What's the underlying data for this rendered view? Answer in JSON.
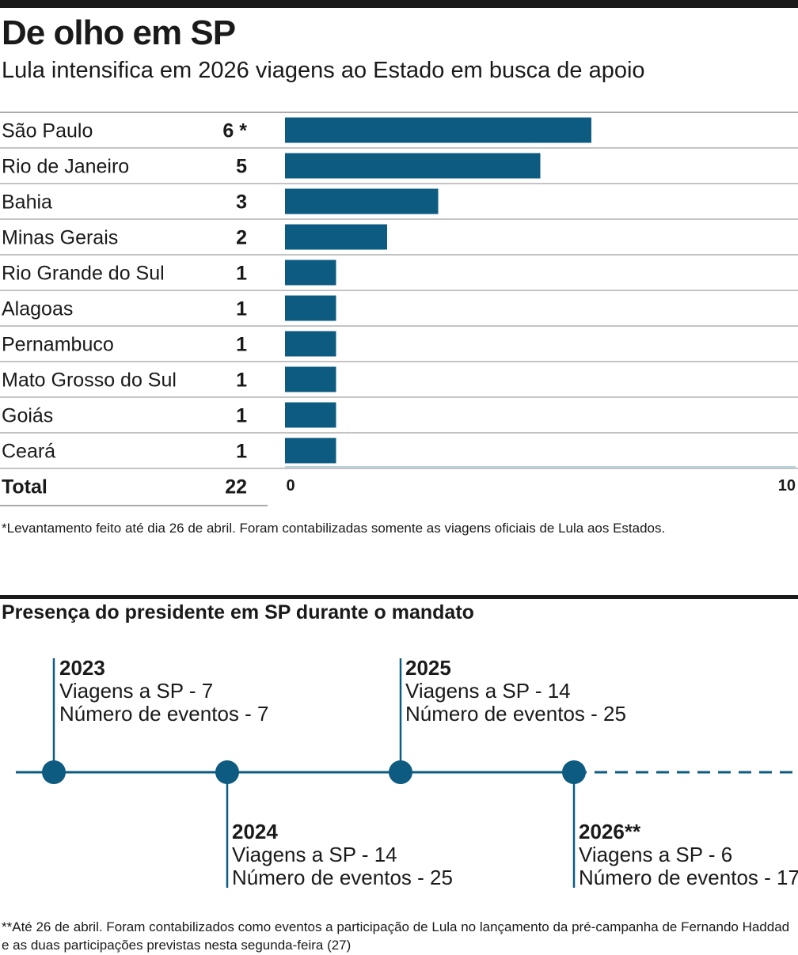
{
  "title": "De olho em SP",
  "subtitle": "Lula intensifica em 2026 viagens ao Estado em busca de apoio",
  "chart_data": {
    "type": "bar",
    "orientation": "horizontal",
    "categories": [
      "São Paulo",
      "Rio de Janeiro",
      "Bahia",
      "Minas Gerais",
      "Rio Grande do Sul",
      "Alagoas",
      "Pernambuco",
      "Mato Grosso do Sul",
      "Goiás",
      "Ceará"
    ],
    "values": [
      6,
      5,
      3,
      2,
      1,
      1,
      1,
      1,
      1,
      1
    ],
    "value_labels": [
      "6 *",
      "5",
      "3",
      "2",
      "1",
      "1",
      "1",
      "1",
      "1",
      "1"
    ],
    "total_label": "Total",
    "total_value": "22",
    "xlim": [
      0,
      10
    ],
    "x_ticks": [
      "0",
      "10"
    ],
    "bar_color": "#0d5b80",
    "title": "",
    "xlabel": "",
    "ylabel": ""
  },
  "footnote1": "*Levantamento feito até dia 26 de abril. Foram contabilizadas somente as viagens oficiais de Lula aos Estados.",
  "timeline": {
    "title": "Presença do presidente em SP durante o mandato",
    "color": "#0d5b80",
    "items": [
      {
        "year": "2023",
        "line1": "Viagens a SP - 7",
        "line2": "Número de eventos - 7"
      },
      {
        "year": "2024",
        "line1": "Viagens a SP - 14",
        "line2": "Número de eventos - 25"
      },
      {
        "year": "2025",
        "line1": "Viagens a SP - 14",
        "line2": "Número de eventos - 25"
      },
      {
        "year": "2026**",
        "line1": "Viagens a SP - 6",
        "line2": "Número de eventos - 17"
      }
    ]
  },
  "footnote2": "**Até 26 de abril. Foram contabilizados como eventos a participação de Lula no lançamento da pré-campanha de Fernando Haddad e as duas participações previstas nesta segunda-feira (27)"
}
